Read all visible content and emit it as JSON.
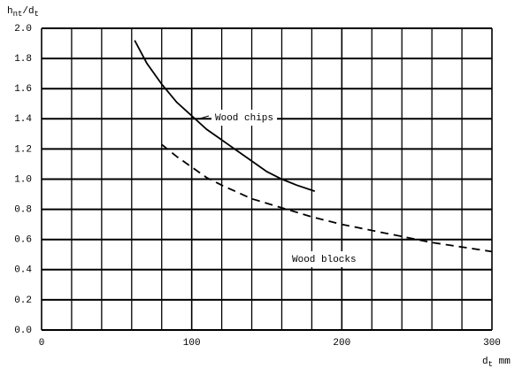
{
  "chart_data": {
    "type": "line",
    "y_label_parts": [
      "h",
      "nt",
      "/d",
      "t"
    ],
    "x_label_parts": [
      "d",
      "t",
      " mm"
    ],
    "xlim": [
      0,
      300
    ],
    "xticks": [
      0,
      100,
      200,
      300
    ],
    "x_minor_ticks": [
      20,
      40,
      60,
      80,
      120,
      140,
      160,
      180,
      220,
      240,
      260,
      280
    ],
    "ylim": [
      0,
      2.0
    ],
    "yticks": [
      {
        "value": 0,
        "label": "0.0"
      },
      0.2,
      0.4,
      0.6,
      0.8,
      {
        "value": 1,
        "label": "1.0"
      },
      1.2,
      1.4,
      1.6,
      1.8,
      {
        "value": 2,
        "label": "2.0"
      }
    ],
    "grid": true,
    "series": [
      {
        "name": "Wood chips",
        "color": "#000000",
        "dash": false,
        "x": [
          62,
          70,
          80,
          90,
          100,
          110,
          120,
          130,
          140,
          150,
          160,
          170,
          182
        ],
        "values": [
          1.92,
          1.77,
          1.63,
          1.51,
          1.42,
          1.33,
          1.26,
          1.19,
          1.12,
          1.05,
          1.0,
          0.96,
          0.92
        ]
      },
      {
        "name": "Wood blocks",
        "color": "#000000",
        "dash": true,
        "x": [
          80,
          90,
          100,
          110,
          120,
          140,
          160,
          180,
          200,
          220,
          240,
          260,
          280,
          300
        ],
        "values": [
          1.23,
          1.15,
          1.08,
          1.01,
          0.96,
          0.87,
          0.81,
          0.75,
          0.7,
          0.66,
          0.62,
          0.58,
          0.55,
          0.52
        ]
      }
    ]
  }
}
